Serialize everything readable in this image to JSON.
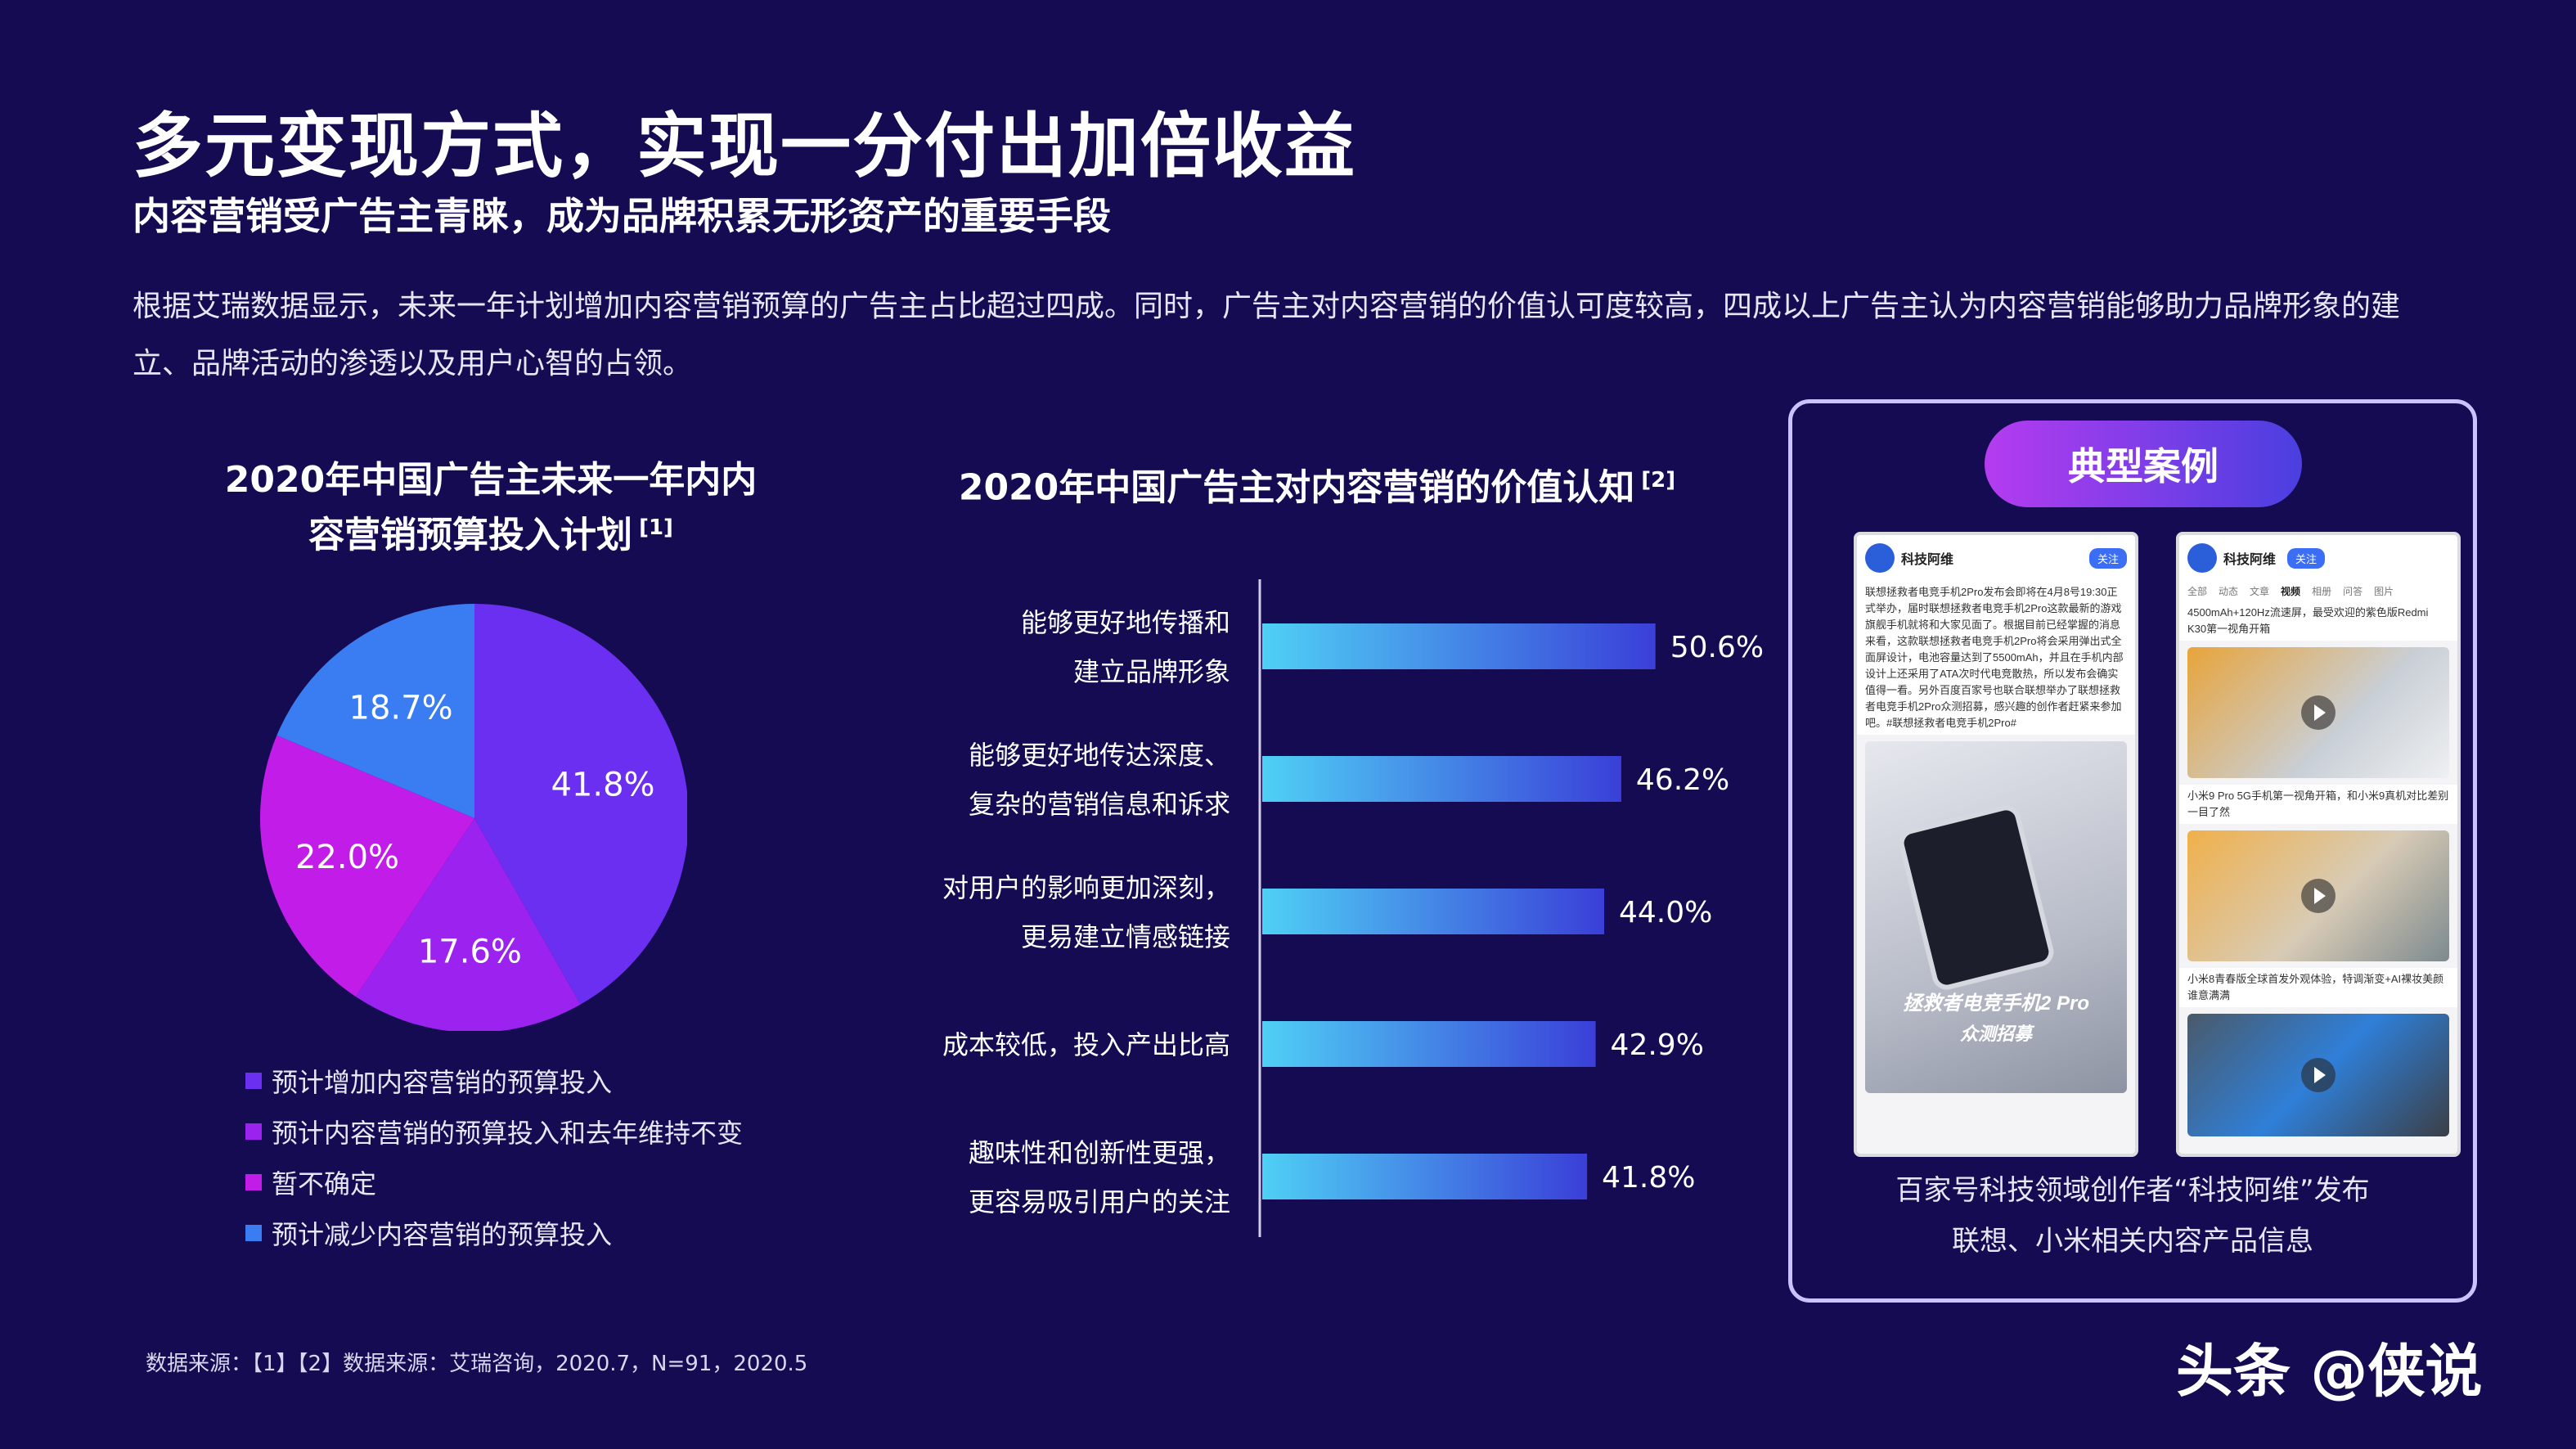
{
  "title": "多元变现方式，实现一分付出加倍收益",
  "subtitle": "内容营销受广告主青睐，成为品牌积累无形资产的重要手段",
  "intro": "根据艾瑞数据显示，未来一年计划增加内容营销预算的广告主占比超过四成。同时，广告主对内容营销的价值认可度较高，四成以上广告主认为内容营销能够助力品牌形象的建立、品牌活动的渗透以及用户心智的占领。",
  "chart_data": [
    {
      "type": "pie",
      "title_line1": "2020年中国广告主未来一年内内",
      "title_line2": "容营销预算投入计划",
      "note": "[1]",
      "slices": [
        {
          "label": "预计增加内容营销的预算投入",
          "value": 41.8,
          "display": "41.8%",
          "color": "#6a2ff0"
        },
        {
          "label": "预计内容营销的预算投入和去年维持不变",
          "value": 17.6,
          "display": "17.6%",
          "color": "#9b22ef"
        },
        {
          "label": "暂不确定",
          "value": 22.0,
          "display": "22.0%",
          "color": "#c21ce9"
        },
        {
          "label": "预计减少内容营销的预算投入",
          "value": 18.7,
          "display": "18.7%",
          "color": "#3a7cf2"
        }
      ]
    },
    {
      "type": "bar",
      "orientation": "horizontal",
      "title": "2020年中国广告主对内容营销的价值认知",
      "note": "[2]",
      "categories": [
        [
          "能够更好地传播和",
          "建立品牌形象"
        ],
        [
          "能够更好地传达深度、",
          "复杂的营销信息和诉求"
        ],
        [
          "对用户的影响更加深刻，",
          "更易建立情感链接"
        ],
        [
          "成本较低，投入产出比高"
        ],
        [
          "趣味性和创新性更强，",
          "更容易吸引用户的关注"
        ]
      ],
      "values": [
        50.6,
        46.2,
        44.0,
        42.9,
        41.8
      ],
      "labels": [
        "50.6%",
        "46.2%",
        "44.0%",
        "42.9%",
        "41.8%"
      ],
      "xlim": [
        0,
        100
      ]
    }
  ],
  "case": {
    "tag": "典型案例",
    "caption_line1": "百家号科技领域创作者“科技阿维”发布",
    "caption_line2": "联想、小米相关内容产品信息",
    "phone1": {
      "name": "科技阿维",
      "follow": "关注",
      "text": "联想拯救者电竞手机2Pro发布会即将在4月8号19:30正式举办，届时联想拯救者电竞手机2Pro这款最新的游戏旗舰手机就将和大家见面了。根据目前已经掌握的消息来看，这款联想拯救者电竞手机2Pro将会采用弹出式全面屏设计，电池容量达到了5500mAh，并且在手机内部设计上还采用了ATA次时代电竞散热，所以发布会确实值得一看。另外百度百家号也联合联想举办了联想拯救者电竞手机2Pro众测招募，感兴趣的创作者赶紧来参加吧。#联想拯救者电竞手机2Pro#",
      "banner": "拯救者电竞手机2 Pro",
      "banner2": "众测招募"
    },
    "phone2": {
      "name": "科技阿维",
      "follow": "关注",
      "tabs": [
        "全部",
        "动态",
        "文章",
        "视频",
        "相册",
        "问答",
        "图片"
      ],
      "items": [
        "4500mAh+120Hz流速屏，最受欢迎的紫色版Redmi K30第一视角开箱",
        "小米9 Pro 5G手机第一视角开箱，和小米9真机对比差别一目了然",
        "小米8青春版全球首发外观体验，特调渐变+AI裸妆美颜谁意满满"
      ]
    }
  },
  "source": "数据来源：【1】【2】数据来源：艾瑞咨询，2020.7，N=91，2020.5",
  "watermark": "头条 @侠说"
}
